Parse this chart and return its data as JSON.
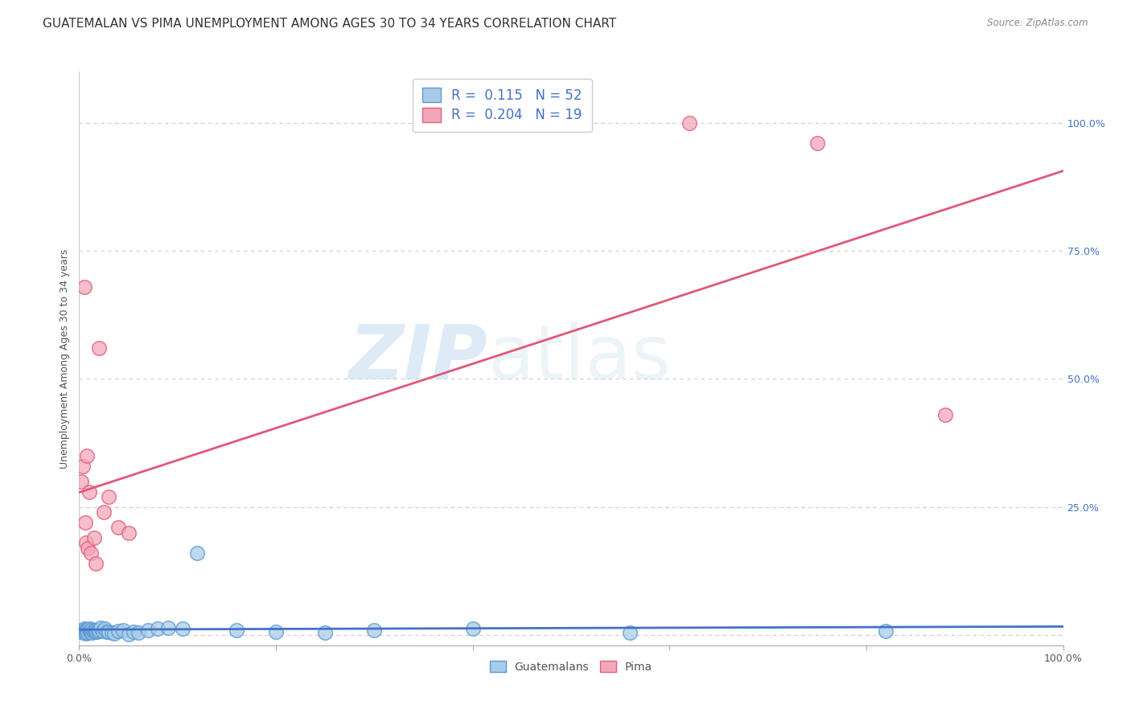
{
  "title": "GUATEMALAN VS PIMA UNEMPLOYMENT AMONG AGES 30 TO 34 YEARS CORRELATION CHART",
  "source": "Source: ZipAtlas.com",
  "ylabel": "Unemployment Among Ages 30 to 34 years",
  "legend_label1": "Guatemalans",
  "legend_label2": "Pima",
  "R1": 0.115,
  "N1": 52,
  "R2": 0.204,
  "N2": 19,
  "blue_scatter_color": "#a8cce8",
  "blue_edge_color": "#5b9bd5",
  "pink_scatter_color": "#f4a7b9",
  "pink_edge_color": "#e06080",
  "blue_line_color": "#4472c4",
  "pink_line_color": "#e05878",
  "guatemalan_x": [
    0.002,
    0.003,
    0.004,
    0.005,
    0.005,
    0.006,
    0.006,
    0.007,
    0.007,
    0.008,
    0.008,
    0.009,
    0.009,
    0.01,
    0.01,
    0.011,
    0.011,
    0.012,
    0.012,
    0.013,
    0.013,
    0.014,
    0.015,
    0.016,
    0.017,
    0.018,
    0.019,
    0.02,
    0.022,
    0.024,
    0.026,
    0.028,
    0.03,
    0.033,
    0.036,
    0.04,
    0.045,
    0.05,
    0.055,
    0.06,
    0.07,
    0.08,
    0.09,
    0.105,
    0.12,
    0.16,
    0.2,
    0.25,
    0.3,
    0.4,
    0.56,
    0.82
  ],
  "guatemalan_y": [
    0.01,
    0.008,
    0.005,
    0.012,
    0.007,
    0.009,
    0.006,
    0.011,
    0.004,
    0.008,
    0.01,
    0.007,
    0.005,
    0.009,
    0.012,
    0.006,
    0.008,
    0.01,
    0.007,
    0.005,
    0.011,
    0.008,
    0.009,
    0.006,
    0.01,
    0.007,
    0.008,
    0.01,
    0.015,
    0.008,
    0.012,
    0.007,
    0.006,
    0.005,
    0.003,
    0.008,
    0.01,
    0.002,
    0.007,
    0.005,
    0.01,
    0.012,
    0.015,
    0.012,
    0.16,
    0.01,
    0.007,
    0.005,
    0.01,
    0.012,
    0.005,
    0.008
  ],
  "pima_x": [
    0.002,
    0.004,
    0.005,
    0.006,
    0.007,
    0.008,
    0.009,
    0.01,
    0.012,
    0.015,
    0.017,
    0.02,
    0.025,
    0.03,
    0.04,
    0.05,
    0.62,
    0.75,
    0.88
  ],
  "pima_y": [
    0.3,
    0.33,
    0.68,
    0.22,
    0.18,
    0.35,
    0.17,
    0.28,
    0.16,
    0.19,
    0.14,
    0.56,
    0.24,
    0.27,
    0.21,
    0.2,
    1.0,
    0.96,
    0.43
  ],
  "title_fontsize": 11,
  "axis_fontsize": 9,
  "tick_fontsize": 9,
  "watermark_zip": "ZIP",
  "watermark_atlas": "atlas",
  "background_color": "#ffffff",
  "grid_color": "#cccccc",
  "ylim_min": -0.02,
  "ylim_max": 1.1,
  "xlim_min": 0.0,
  "xlim_max": 1.0
}
